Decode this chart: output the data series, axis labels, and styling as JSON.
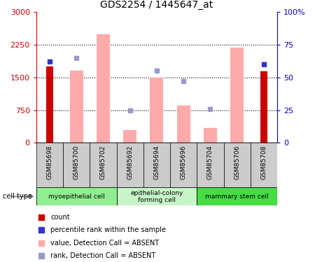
{
  "title": "GDS2254 / 1445647_at",
  "samples": [
    "GSM85698",
    "GSM85700",
    "GSM85702",
    "GSM85692",
    "GSM85694",
    "GSM85696",
    "GSM85704",
    "GSM85706",
    "GSM85708"
  ],
  "count_values": [
    1750,
    0,
    0,
    0,
    0,
    0,
    0,
    0,
    1640
  ],
  "count_percentile": [
    62,
    null,
    null,
    null,
    null,
    null,
    null,
    null,
    60
  ],
  "absent_value": [
    null,
    1650,
    2490,
    290,
    1500,
    850,
    350,
    2180,
    null
  ],
  "absent_rank": [
    null,
    65,
    null,
    25,
    55,
    47,
    26,
    null,
    null
  ],
  "ylim_left": [
    0,
    3000
  ],
  "ylim_right": [
    0,
    100
  ],
  "yticks_left": [
    0,
    750,
    1500,
    2250,
    3000
  ],
  "yticks_right": [
    0,
    25,
    50,
    75,
    100
  ],
  "ytick_labels_left": [
    "0",
    "750",
    "1500",
    "2250",
    "3000"
  ],
  "ytick_labels_right": [
    "0",
    "25",
    "50",
    "75",
    "100%"
  ],
  "groups": [
    {
      "label": "myoepithelial cell",
      "start": 0,
      "end": 3,
      "color": "#90ee90"
    },
    {
      "label": "epithelial-colony\nforming cell",
      "start": 3,
      "end": 6,
      "color": "#c8f5c8"
    },
    {
      "label": "mammary stem cell",
      "start": 6,
      "end": 9,
      "color": "#44dd44"
    }
  ],
  "bar_width": 0.5,
  "count_color": "#cc0000",
  "absent_value_color": "#ffaaaa",
  "percentile_color": "#3333cc",
  "absent_rank_color": "#9999cc",
  "sample_bg": "#cccccc",
  "grid_color": "#000000"
}
